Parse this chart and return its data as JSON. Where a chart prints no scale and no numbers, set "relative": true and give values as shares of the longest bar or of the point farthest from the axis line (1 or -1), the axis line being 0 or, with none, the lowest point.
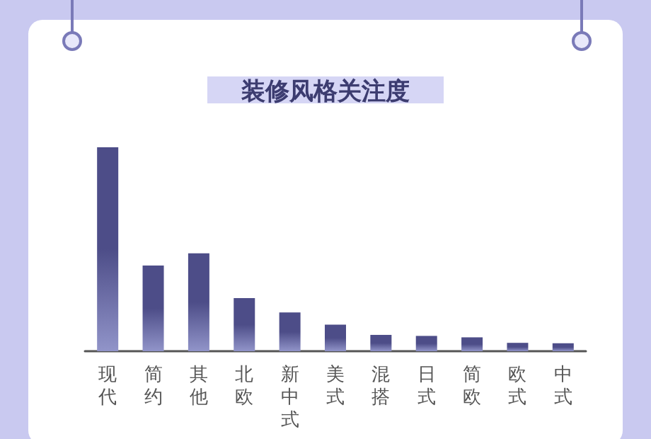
{
  "chart_data": {
    "type": "bar",
    "title": "装修风格关注度",
    "relative": true,
    "categories": [
      "现代",
      "简约",
      "其他",
      "北欧",
      "新中式",
      "美式",
      "混搭",
      "日式",
      "简欧",
      "欧式",
      "中式"
    ],
    "values": [
      1,
      0.42,
      0.48,
      0.26,
      0.19,
      0.13,
      0.08,
      0.075,
      0.068,
      0.041,
      0.039
    ],
    "color": "#4d4d88"
  }
}
